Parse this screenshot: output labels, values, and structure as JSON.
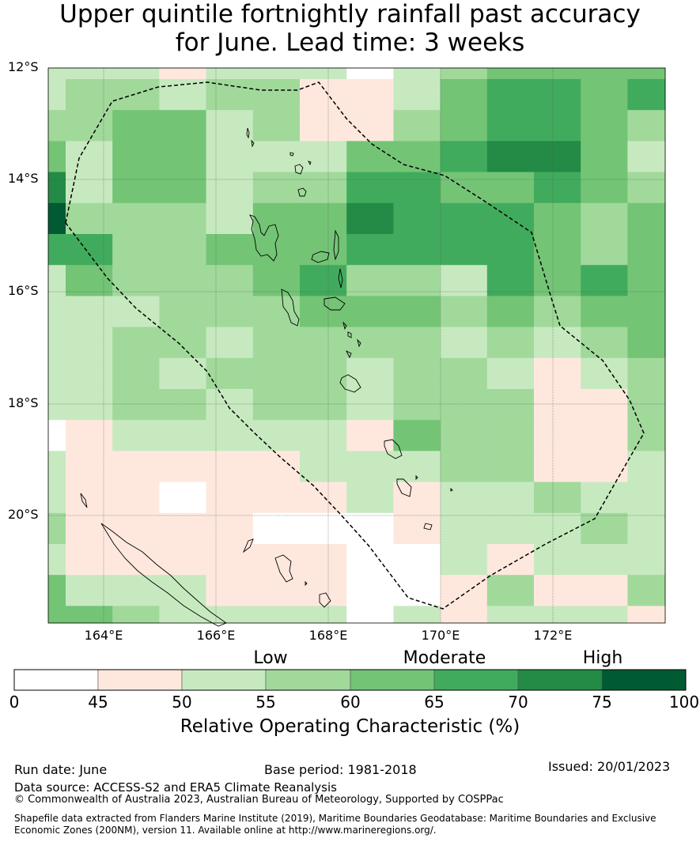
{
  "title_line1": "Upper quintile fortnightly rainfall past accuracy",
  "title_line2": "for June. Lead time: 3 weeks",
  "lat_labels": [
    "12°S",
    "14°S",
    "16°S",
    "18°S",
    "20°S"
  ],
  "lon_labels": [
    "164°E",
    "166°E",
    "168°E",
    "170°E",
    "172°E"
  ],
  "legend": {
    "categories": [
      "Low",
      "Moderate",
      "High"
    ],
    "ticks": [
      "0",
      "45",
      "50",
      "55",
      "60",
      "65",
      "70",
      "75",
      "100"
    ],
    "colors": [
      "#ffffff",
      "#fee8de",
      "#c7e9c0",
      "#a1d99b",
      "#74c476",
      "#41ab5d",
      "#238b45",
      "#005a32"
    ],
    "title": "Relative Operating Characteristic (%)"
  },
  "run_date": "Run date: June",
  "base_period": "Base period: 1981-2018",
  "issued": "Issued: 20/01/2023",
  "data_source": "Data source: ACCESS-S2 and ERA5 Climate Reanalysis",
  "copyright": "© Commonwealth of Australia 2023, Australian Bureau of Meteorology, Supported by COSPPac",
  "shapefile_note": "Shapefile data extracted from Flanders Marine Institute (2019), Maritime Boundaries Geodatabase: Maritime Boundaries and Exclusive Economic Zones (200NM), version 11. Available online at http://www.marineregions.org/.",
  "grid": {
    "lon_start": 163.0,
    "lat_start": -12.0,
    "cell_deg": 0.833,
    "rows": [
      [
        2,
        2,
        2,
        1,
        2,
        2,
        2,
        0,
        2,
        3,
        4,
        4,
        4,
        4
      ],
      [
        2,
        3,
        3,
        2,
        3,
        3,
        1,
        1,
        2,
        4,
        5,
        5,
        4,
        5
      ],
      [
        3,
        3,
        4,
        4,
        2,
        3,
        1,
        1,
        3,
        4,
        5,
        5,
        4,
        3
      ],
      [
        4,
        2,
        4,
        4,
        2,
        2,
        2,
        4,
        4,
        5,
        6,
        6,
        4,
        2
      ],
      [
        6,
        2,
        4,
        4,
        2,
        3,
        3,
        5,
        5,
        4,
        4,
        5,
        4,
        3
      ],
      [
        7,
        3,
        3,
        3,
        2,
        4,
        4,
        6,
        5,
        5,
        5,
        4,
        3,
        4
      ],
      [
        5,
        5,
        3,
        3,
        4,
        4,
        4,
        5,
        5,
        5,
        5,
        4,
        3,
        4
      ],
      [
        2,
        4,
        3,
        3,
        3,
        4,
        5,
        3,
        3,
        2,
        5,
        4,
        5,
        4
      ],
      [
        2,
        2,
        2,
        3,
        3,
        3,
        4,
        4,
        4,
        3,
        4,
        3,
        4,
        4
      ],
      [
        2,
        2,
        3,
        3,
        2,
        3,
        3,
        3,
        3,
        2,
        3,
        2,
        3,
        4
      ],
      [
        2,
        2,
        3,
        2,
        3,
        3,
        3,
        2,
        3,
        3,
        2,
        1,
        2,
        3
      ],
      [
        2,
        2,
        3,
        3,
        2,
        3,
        3,
        2,
        3,
        3,
        3,
        1,
        1,
        3
      ],
      [
        0,
        1,
        2,
        2,
        2,
        2,
        2,
        1,
        4,
        3,
        3,
        1,
        1,
        3
      ],
      [
        2,
        1,
        1,
        1,
        1,
        1,
        2,
        2,
        2,
        3,
        3,
        1,
        1,
        2
      ],
      [
        2,
        1,
        1,
        0,
        1,
        1,
        1,
        2,
        1,
        2,
        2,
        3,
        2,
        2
      ],
      [
        3,
        1,
        1,
        1,
        1,
        0,
        0,
        0,
        1,
        2,
        2,
        2,
        3,
        2
      ],
      [
        2,
        1,
        1,
        1,
        1,
        1,
        1,
        0,
        0,
        2,
        1,
        2,
        2,
        2
      ],
      [
        4,
        2,
        2,
        2,
        1,
        1,
        1,
        0,
        0,
        1,
        3,
        1,
        1,
        3
      ],
      [
        4,
        4,
        3,
        2,
        2,
        2,
        2,
        0,
        2,
        1,
        2,
        2,
        2,
        1
      ]
    ]
  }
}
